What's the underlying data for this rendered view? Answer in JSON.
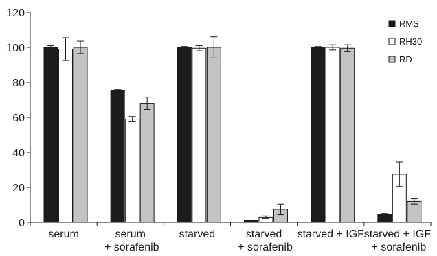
{
  "chart_data": {
    "type": "bar",
    "title": "",
    "xlabel": "",
    "ylabel": "",
    "ylim": [
      0,
      120
    ],
    "yticks": [
      0,
      20,
      40,
      60,
      80,
      100,
      120
    ],
    "grid": false,
    "legend_position": "top-right",
    "categories": [
      [
        "serum"
      ],
      [
        "serum",
        "+ sorafenib"
      ],
      [
        "starved"
      ],
      [
        "starved",
        "+ sorafenib"
      ],
      [
        "starved + IGF"
      ],
      [
        "starved + IGF",
        "+ sorafenib"
      ]
    ],
    "series": [
      {
        "name": "RMS",
        "color": "#1c1c1c",
        "values": [
          100,
          75.5,
          100,
          1,
          100,
          4.5
        ],
        "errors": [
          1,
          0.3,
          0.5,
          0.2,
          0.5,
          0.3
        ]
      },
      {
        "name": "RH30",
        "color": "#ffffff",
        "values": [
          99,
          59,
          99.5,
          3,
          100,
          27.5
        ],
        "errors": [
          6.5,
          1.5,
          1.5,
          0.8,
          1.5,
          7
        ]
      },
      {
        "name": "RD",
        "color": "#c3c3c3",
        "values": [
          100,
          68,
          100,
          7.5,
          99.5,
          12
        ],
        "errors": [
          3.5,
          3.5,
          6,
          3,
          2,
          1.5
        ]
      }
    ]
  }
}
